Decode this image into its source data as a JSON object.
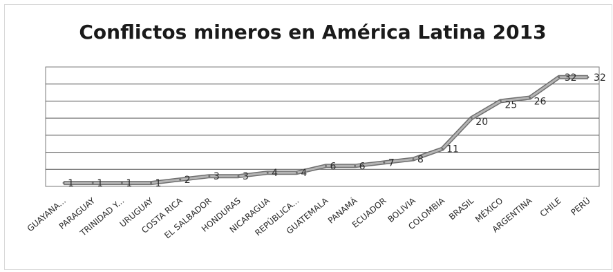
{
  "chart_data": {
    "type": "line",
    "title": "Conflictos mineros en América Latina 2013",
    "categories": [
      "GUAYANA...",
      "PARAGUAY",
      "TRINIDAD Y...",
      "URUGUAY",
      "COSTA RICA",
      "EL SALBADOR",
      "HONDURAS",
      "NICARAGUA",
      "REPÚBLICA...",
      "GUATEMALA",
      "PANAMÁ",
      "ECUADOR",
      "BOLIVIA",
      "COLOMBIA",
      "BRASIL",
      "MÉXICO",
      "ARGENTINA",
      "CHILE",
      "PERÚ"
    ],
    "values": [
      1,
      1,
      1,
      1,
      2,
      3,
      3,
      4,
      4,
      6,
      6,
      7,
      8,
      11,
      20,
      25,
      26,
      32,
      32
    ],
    "ylim": [
      0,
      35
    ],
    "grid": true,
    "line_color": "#8a8a8a"
  }
}
